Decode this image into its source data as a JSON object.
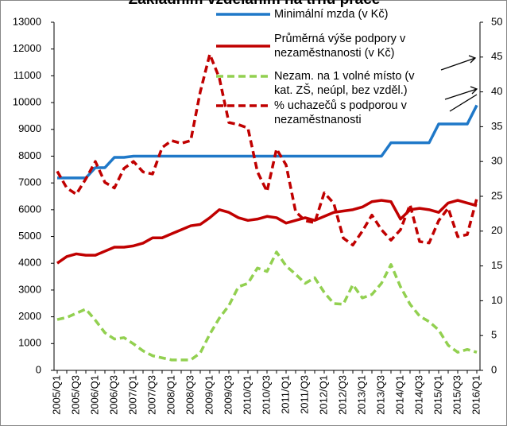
{
  "chart_data": {
    "type": "line",
    "title": "Základním vzděláním na trhu práce",
    "categories": [
      "2005/Q1",
      null,
      "2005/Q3",
      null,
      "2006/Q1",
      null,
      "2006/Q3",
      null,
      "2007/Q1",
      null,
      "2007/Q3",
      null,
      "2008/Q1",
      null,
      "2008/Q3",
      null,
      "2009/Q1",
      null,
      "2009/Q3",
      null,
      "2010/Q1",
      null,
      "2010/Q3",
      null,
      "2011/Q1",
      null,
      "2011/Q3",
      null,
      "2012/Q1",
      null,
      "2012/Q3",
      null,
      "2013/Q1",
      null,
      "2013/Q3",
      null,
      "2014/Q1",
      null,
      "2014/Q3",
      null,
      "2015/Q1",
      null,
      "2015/Q3",
      null,
      "2016/Q1"
    ],
    "series": [
      {
        "name": "Minimální mzda (v Kč)",
        "color": "#1f78c8",
        "dashed": false,
        "axis": "y",
        "values": [
          7185,
          7185,
          7185,
          7185,
          7570,
          7570,
          7955,
          7955,
          8000,
          8000,
          8000,
          8000,
          8000,
          8000,
          8000,
          8000,
          8000,
          8000,
          8000,
          8000,
          8000,
          8000,
          8000,
          8000,
          8000,
          8000,
          8000,
          8000,
          8000,
          8000,
          8000,
          8000,
          8000,
          8000,
          8000,
          8500,
          8500,
          8500,
          8500,
          8500,
          9200,
          9200,
          9200,
          9200,
          9900
        ]
      },
      {
        "name": "Průměrná výše podpory v nezaměstnanosti (v Kč)",
        "color": "#c00000",
        "dashed": false,
        "axis": "y",
        "values": [
          4000,
          4250,
          4350,
          4300,
          4300,
          4450,
          4600,
          4600,
          4650,
          4750,
          4950,
          4950,
          5100,
          5250,
          5400,
          5450,
          5700,
          6000,
          5900,
          5700,
          5600,
          5650,
          5750,
          5700,
          5500,
          5600,
          5700,
          5600,
          5750,
          5900,
          5950,
          6000,
          6100,
          6300,
          6350,
          6300,
          5650,
          6000,
          6050,
          6000,
          5900,
          6250,
          6350,
          6250,
          6150
        ]
      },
      {
        "name": "Nezam. na 1 volné místo (v kat. ZŠ, neúpl, bez vzděl.)",
        "color": "#92d050",
        "dashed": true,
        "axis": "y2",
        "values": [
          7.3,
          7.6,
          8.2,
          8.8,
          7.2,
          5.4,
          4.5,
          4.7,
          3.8,
          2.8,
          2.1,
          1.8,
          1.5,
          1.5,
          1.5,
          2.5,
          5.2,
          7.5,
          9.3,
          12,
          12.5,
          14.7,
          14.2,
          17,
          15,
          13.8,
          12.5,
          13.3,
          11.2,
          9.6,
          9.5,
          12.3,
          10.4,
          10.9,
          12.5,
          15.2,
          12,
          9.5,
          7.8,
          7,
          5.8,
          3.6,
          2.6,
          3,
          2.6
        ]
      },
      {
        "name": "% uchazečů s podporou v nezaměstnanosti",
        "color": "#c00000",
        "dashed": true,
        "axis": "y2",
        "values": [
          28.6,
          26.2,
          25.3,
          27.5,
          30,
          27,
          26.2,
          29,
          30,
          28.5,
          28.2,
          32,
          33,
          32.6,
          33,
          40,
          45.4,
          42,
          35.6,
          35.3,
          34.8,
          28.5,
          25.7,
          31.8,
          29.5,
          22.8,
          21.5,
          21.2,
          25.5,
          24,
          19,
          18,
          20,
          22.3,
          20.2,
          18.7,
          20.2,
          23.8,
          18.5,
          18.3,
          21.5,
          23.3,
          19.2,
          19.5,
          24.7
        ]
      }
    ],
    "ylim": [
      0,
      13000
    ],
    "yticks": [
      0,
      1000,
      2000,
      3000,
      4000,
      5000,
      6000,
      7000,
      8000,
      9000,
      10000,
      11000,
      12000,
      13000
    ],
    "y2lim": [
      0,
      50
    ],
    "y2ticks": [
      0,
      5,
      10,
      15,
      20,
      25,
      30,
      35,
      40,
      45,
      50
    ]
  }
}
